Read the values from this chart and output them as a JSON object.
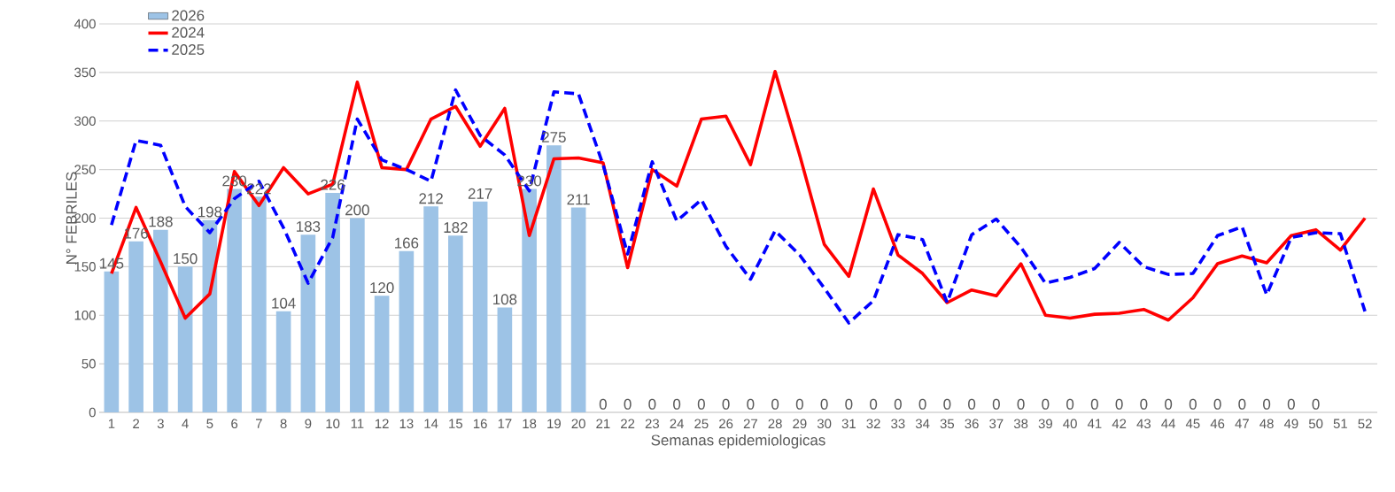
{
  "chart_data": {
    "type": "bar",
    "xlabel": "Semanas epidemiologicas",
    "ylabel": "N° FEBRILES",
    "categories": [
      "1",
      "2",
      "3",
      "4",
      "5",
      "6",
      "7",
      "8",
      "9",
      "10",
      "11",
      "12",
      "13",
      "14",
      "15",
      "16",
      "17",
      "18",
      "19",
      "20",
      "21",
      "22",
      "23",
      "24",
      "25",
      "26",
      "27",
      "28",
      "29",
      "30",
      "31",
      "32",
      "33",
      "34",
      "35",
      "36",
      "37",
      "38",
      "39",
      "40",
      "41",
      "42",
      "43",
      "44",
      "45",
      "46",
      "47",
      "48",
      "49",
      "50",
      "51",
      "52"
    ],
    "ylim": [
      0,
      400
    ],
    "yticks": [
      0,
      50,
      100,
      150,
      200,
      250,
      300,
      350,
      400
    ],
    "grid": "y",
    "legend": "top left",
    "marker": "none",
    "series": [
      {
        "name": "2026",
        "color": "#9dc3e6",
        "values": [
          145,
          176,
          188,
          150,
          198,
          230,
          222,
          104,
          183,
          226,
          200,
          120,
          166,
          212,
          182,
          217,
          108,
          230,
          275,
          211,
          0,
          0,
          0,
          0,
          0,
          0,
          0,
          0,
          0,
          0,
          0,
          0,
          0,
          0,
          0,
          0,
          0,
          0,
          0,
          0,
          0,
          0,
          0,
          0,
          0,
          0,
          0,
          0,
          0,
          0,
          null,
          null
        ],
        "value_labels": [
          "145",
          "176",
          "188",
          "150",
          "198",
          "230",
          "222",
          "104",
          "183",
          "226",
          "200",
          "120",
          "166",
          "212",
          "182",
          "217",
          "108",
          "230",
          "275",
          "211",
          "0",
          "0",
          "0",
          "0",
          "0",
          "0",
          "0",
          "0",
          "0",
          "0",
          "0",
          "0",
          "0",
          "0",
          "0",
          "0",
          "0",
          "0",
          "0",
          "0",
          "0",
          "0",
          "0",
          "0",
          "0",
          "0",
          "0",
          "0",
          "0",
          "0",
          null,
          null
        ]
      },
      {
        "name": "2024",
        "type": "line",
        "line_style": "solid",
        "color": "#ff0000",
        "values": [
          143,
          211,
          155,
          97,
          122,
          248,
          213,
          252,
          225,
          235,
          340,
          252,
          250,
          302,
          315,
          274,
          313,
          182,
          261,
          262,
          257,
          149,
          250,
          233,
          302,
          305,
          255,
          351,
          265,
          173,
          140,
          230,
          162,
          143,
          113,
          126,
          120,
          153,
          100,
          97,
          101,
          102,
          106,
          95,
          118,
          153,
          161,
          154,
          182,
          188,
          167,
          200
        ]
      },
      {
        "name": "2025",
        "type": "line",
        "line_style": "dashed",
        "color": "#0000ff",
        "values": [
          193,
          280,
          275,
          212,
          185,
          220,
          238,
          190,
          133,
          180,
          302,
          260,
          250,
          238,
          332,
          285,
          265,
          228,
          330,
          328,
          255,
          163,
          258,
          197,
          219,
          171,
          137,
          187,
          162,
          128,
          92,
          115,
          183,
          178,
          113,
          183,
          199,
          170,
          133,
          139,
          148,
          175,
          150,
          142,
          143,
          182,
          191,
          121,
          180,
          185,
          184,
          104
        ]
      }
    ]
  }
}
